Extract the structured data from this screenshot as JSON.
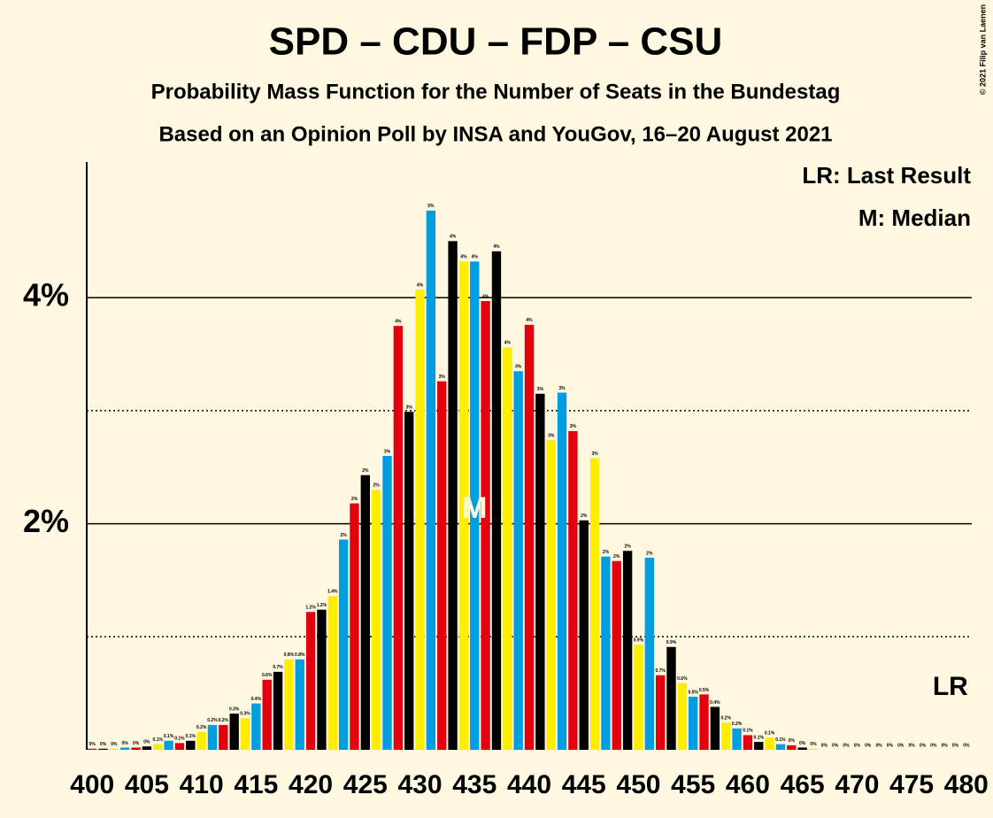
{
  "chart_data": {
    "type": "bar",
    "title": "SPD – CDU – FDP – CSU",
    "subtitle": "Probability Mass Function for the Number of Seats in the Bundestag",
    "subtitle2": "Based on an Opinion Poll by INSA and YouGov, 16–20 August 2021",
    "copyright": "© 2021 Filip van Laenen",
    "legend": [
      "LR: Last Result",
      "M: Median"
    ],
    "median": 435,
    "median_label": "M",
    "last_result": 480,
    "last_result_label": "LR",
    "colors": [
      "#e3000f",
      "#000000",
      "#ffed00",
      "#009ee0"
    ],
    "x": [
      400,
      401,
      402,
      403,
      404,
      405,
      406,
      407,
      408,
      409,
      410,
      411,
      412,
      413,
      414,
      415,
      416,
      417,
      418,
      419,
      420,
      421,
      422,
      423,
      424,
      425,
      426,
      427,
      428,
      429,
      430,
      431,
      432,
      433,
      434,
      435,
      436,
      437,
      438,
      439,
      440,
      441,
      442,
      443,
      444,
      445,
      446,
      447,
      448,
      449,
      450,
      451,
      452,
      453,
      454,
      455,
      456,
      457,
      458,
      459,
      460,
      461,
      462,
      463,
      464,
      465,
      466,
      467,
      468,
      469,
      470,
      471,
      472,
      473,
      474,
      475,
      476,
      477,
      478,
      479,
      480
    ],
    "values": [
      0.01,
      0.01,
      0.01,
      0.02,
      0.02,
      0.03,
      0.05,
      0.08,
      0.06,
      0.08,
      0.16,
      0.22,
      0.22,
      0.32,
      0.28,
      0.41,
      0.62,
      0.69,
      0.8,
      0.8,
      1.22,
      1.24,
      1.36,
      1.86,
      2.18,
      2.43,
      2.3,
      2.6,
      3.75,
      2.99,
      4.07,
      4.77,
      3.26,
      4.5,
      4.32,
      4.32,
      3.97,
      4.41,
      3.56,
      3.35,
      3.76,
      3.15,
      2.74,
      3.16,
      2.82,
      2.03,
      2.58,
      1.71,
      1.67,
      1.76,
      0.93,
      1.7,
      0.66,
      0.91,
      0.59,
      0.47,
      0.49,
      0.38,
      0.24,
      0.19,
      0.13,
      0.07,
      0.11,
      0.05,
      0.04,
      0.02,
      0.01,
      0,
      0,
      0,
      0,
      0,
      0,
      0,
      0,
      0,
      0,
      0,
      0,
      0,
      0
    ],
    "value_labels": [
      "0%",
      "0%",
      "0%",
      "0%",
      "0%",
      "0%",
      "0.1%",
      "0.1%",
      "0.1%",
      "0.1%",
      "0.2%",
      "0.2%",
      "0.2%",
      "0.3%",
      "0.3%",
      "0.4%",
      "0.6%",
      "0.7%",
      "0.8%",
      "0.8%",
      "1.2%",
      "1.2%",
      "1.4%",
      "2%",
      "2%",
      "2%",
      "2%",
      "3%",
      "4%",
      "3%",
      "4%",
      "5%",
      "3%",
      "4%",
      "4%",
      "4%",
      "4%",
      "4%",
      "4%",
      "3%",
      "4%",
      "3%",
      "3%",
      "3%",
      "3%",
      "2%",
      "3%",
      "2%",
      "2%",
      "2%",
      "0.9%",
      "2%",
      "0.7%",
      "0.9%",
      "0.6%",
      "0.5%",
      "0.5%",
      "0.4%",
      "0.2%",
      "0.2%",
      "0.1%",
      "0.1%",
      "0.1%",
      "0.1%",
      "0%",
      "0%",
      "0%",
      "0%",
      "0%",
      "0%",
      "0%",
      "0%",
      "0%",
      "0%",
      "0%",
      "0%",
      "0%",
      "0%",
      "0%",
      "0%",
      "0%"
    ],
    "xlim": [
      399.5,
      480.5
    ],
    "xticks": [
      400,
      405,
      410,
      415,
      420,
      425,
      430,
      435,
      440,
      445,
      450,
      455,
      460,
      465,
      470,
      475,
      480
    ],
    "ylim": [
      0,
      5.2
    ],
    "yticks": [
      {
        "value": 2,
        "label": "2%"
      },
      {
        "value": 4,
        "label": "4%"
      }
    ],
    "minor_grid": [
      1,
      3
    ]
  }
}
